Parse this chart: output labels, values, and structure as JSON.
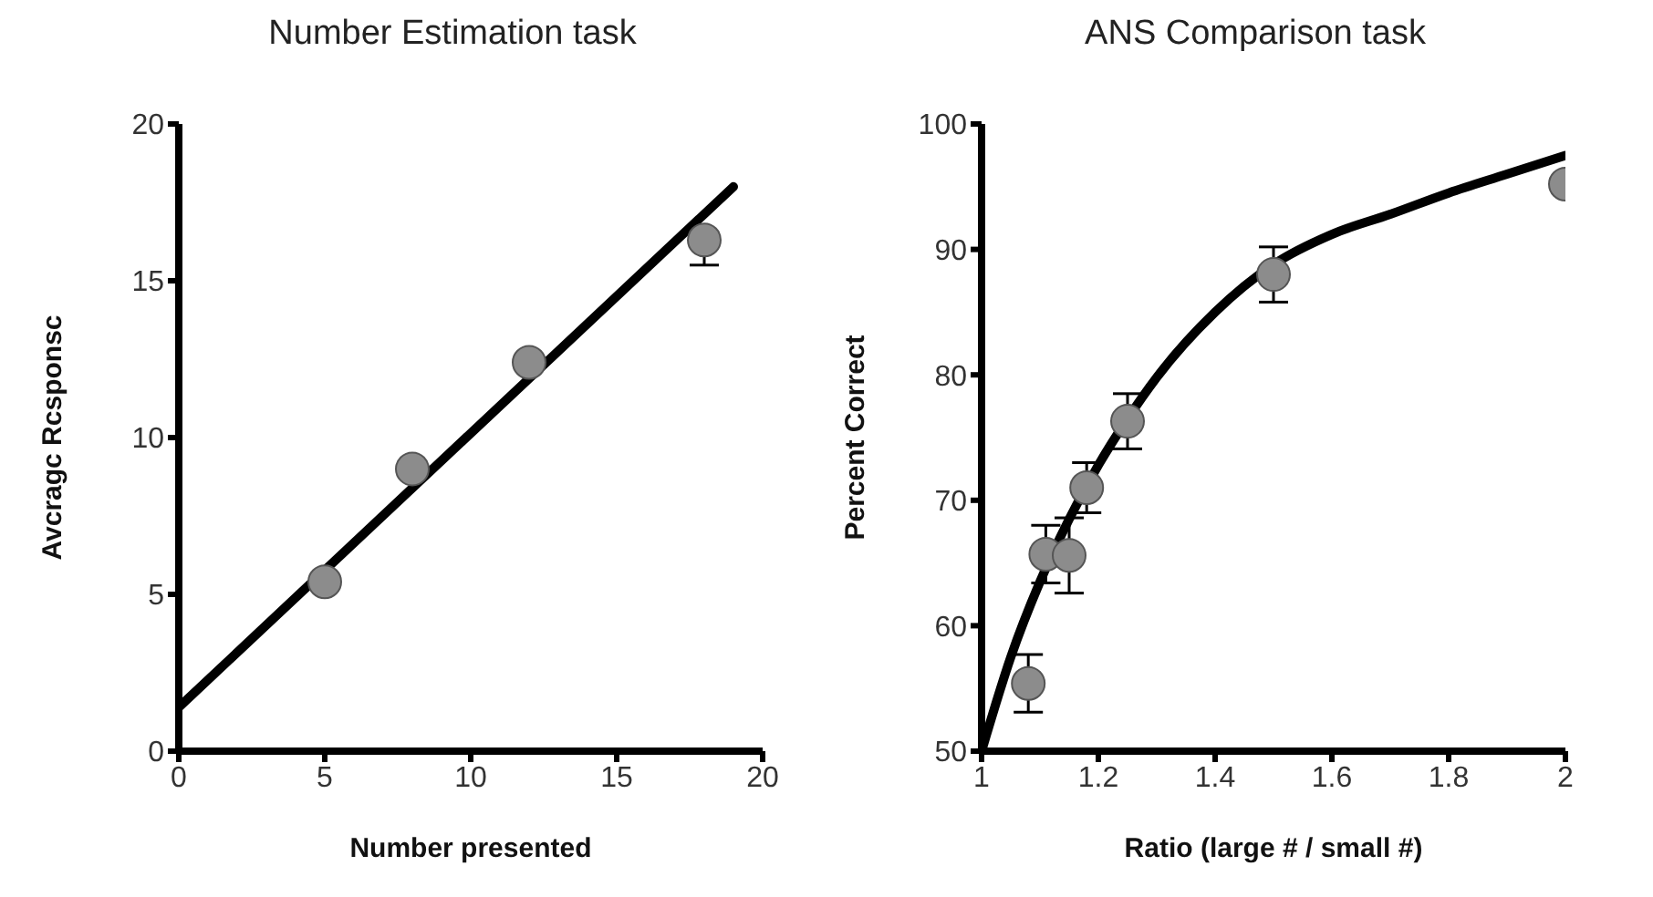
{
  "chart_data": [
    {
      "type": "scatter",
      "title": "Number Estimation task",
      "xlabel": "Number presented",
      "ylabel": "Avcragc Rcsponsc",
      "xlim": [
        0,
        20
      ],
      "xticks": [
        0,
        5,
        10,
        15,
        20
      ],
      "ylim": [
        0,
        20
      ],
      "yticks": [
        0,
        5,
        10,
        15,
        20
      ],
      "grid": false,
      "legend": false,
      "series": [
        {
          "type": "scatter",
          "marker": "circle",
          "color": "#8c8c8c",
          "x": [
            5,
            8,
            12,
            18
          ],
          "values": [
            5.4,
            9.0,
            12.4,
            16.3
          ],
          "errors": [
            null,
            null,
            null,
            [
              15.5,
              16.3
            ]
          ]
        },
        {
          "type": "line",
          "marker": "none",
          "line_style": "solid",
          "color": "#000000",
          "x": [
            0,
            19
          ],
          "values": [
            1.4,
            18
          ]
        }
      ]
    },
    {
      "type": "scatter",
      "title": "ANS Comparison task",
      "xlabel": "Ratio (large # / small #)",
      "ylabel": "Percent Correct",
      "xlim": [
        1,
        2
      ],
      "xticks": [
        1,
        1.2,
        1.4,
        1.6,
        1.8,
        2
      ],
      "ylim": [
        50,
        100
      ],
      "yticks": [
        50,
        60,
        70,
        80,
        90,
        100
      ],
      "grid": false,
      "legend": false,
      "series": [
        {
          "type": "line",
          "marker": "none",
          "line_style": "solid",
          "color": "#000000",
          "x": [
            1,
            1.05,
            1.1,
            1.15,
            1.2,
            1.25,
            1.3,
            1.4,
            1.5,
            1.6,
            1.7,
            1.8,
            1.9,
            2
          ],
          "values": [
            50,
            57.5,
            63.5,
            68.5,
            72.8,
            76.5,
            79.8,
            85,
            88.8,
            91.2,
            92.8,
            94.5,
            96,
            97.5
          ]
        },
        {
          "type": "scatter",
          "marker": "circle",
          "color": "#8c8c8c",
          "x": [
            1.08,
            1.11,
            1.15,
            1.18,
            1.25,
            1.5,
            2
          ],
          "values": [
            55.4,
            65.7,
            65.6,
            71,
            76.3,
            88,
            95.2
          ],
          "errors": [
            2.3,
            2.3,
            3,
            2,
            2.2,
            2.2,
            null
          ]
        }
      ]
    }
  ]
}
